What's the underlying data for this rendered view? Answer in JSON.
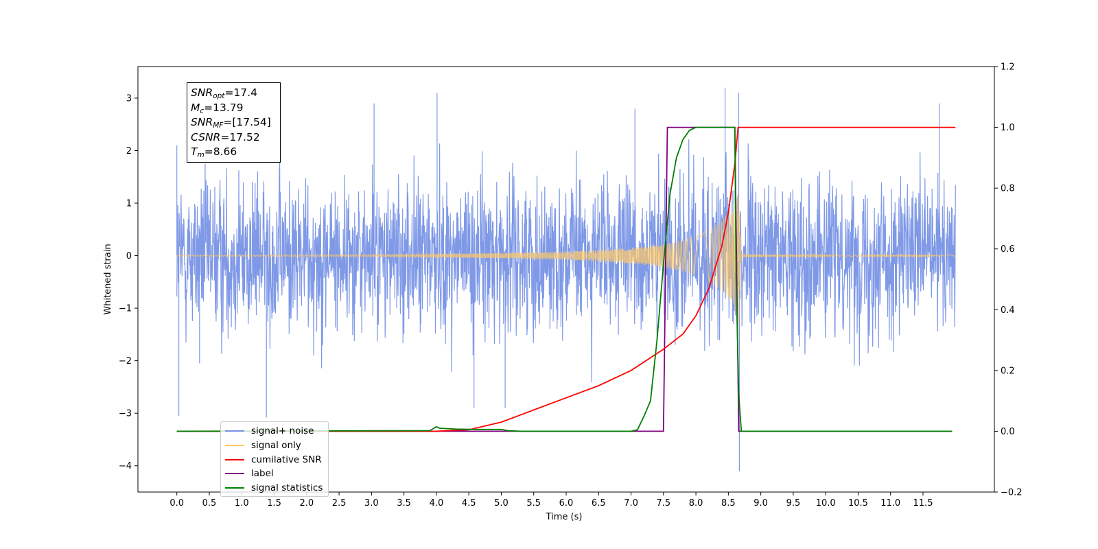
{
  "chart_data": {
    "type": "line",
    "xlabel": "Time (s)",
    "ylabel": "Whitened strain",
    "y2label": "",
    "xlim": [
      -0.6,
      12.6
    ],
    "ylim": [
      -4.5,
      3.6
    ],
    "y2lim": [
      -0.2,
      1.2
    ],
    "xticks": [
      "0.0",
      "0.5",
      "1.0",
      "1.5",
      "2.0",
      "2.5",
      "3.0",
      "3.5",
      "4.0",
      "4.5",
      "5.0",
      "5.5",
      "6.0",
      "6.5",
      "7.0",
      "7.5",
      "8.0",
      "8.5",
      "9.0",
      "9.5",
      "10.0",
      "10.5",
      "11.0",
      "11.5"
    ],
    "yticks": [
      "3",
      "2",
      "1",
      "0",
      "−1",
      "−2",
      "−3",
      "−4"
    ],
    "y2ticks": [
      "1.2",
      "1.0",
      "0.8",
      "0.6",
      "0.4",
      "0.2",
      "0.0",
      "−0.2"
    ],
    "legend_position": "lower-left",
    "legend": [
      {
        "label": "signal+ noise",
        "color": "#7893e6"
      },
      {
        "label": "signal only",
        "color": "#ffc966"
      },
      {
        "label": "cumilative SNR",
        "color": "#ff0000"
      },
      {
        "label": "label",
        "color": "#800080"
      },
      {
        "label": "signal statistics",
        "color": "#008000"
      }
    ],
    "annotations": [
      {
        "symbol": "SNR",
        "sub": "opt",
        "value": "=17.4"
      },
      {
        "symbol": "M",
        "sub": "c",
        "value": "=13.79"
      },
      {
        "symbol": "SNR",
        "sub": "MF",
        "value": "=[17.54]"
      },
      {
        "symbol": "CSNR",
        "sub": "",
        "value": "=17.52"
      },
      {
        "symbol": "T",
        "sub": "m",
        "value": "=8.66"
      }
    ],
    "series": [
      {
        "name": "signal+ noise",
        "axis": "left",
        "description_range": [
          -3.0,
          3.2
        ],
        "x_range": [
          0.0,
          12.0
        ],
        "peaks": {
          "x": [
            0.0,
            0.03,
            0.35,
            1.38,
            3.04,
            4.01,
            4.58,
            5.06,
            7.06,
            8.45,
            8.66,
            8.67,
            11.75
          ],
          "y": [
            2.1,
            -3.05,
            -2.05,
            -3.08,
            2.9,
            3.1,
            -2.9,
            -2.9,
            2.8,
            3.2,
            3.1,
            -4.1,
            2.9
          ]
        }
      },
      {
        "name": "signal only",
        "axis": "left",
        "x": [
          0.0,
          3.0,
          4.0,
          5.0,
          6.0,
          6.5,
          7.0,
          7.5,
          7.8,
          8.0,
          8.2,
          8.4,
          8.55,
          8.62,
          8.66,
          8.7,
          12.0
        ],
        "envelope": [
          0.01,
          0.02,
          0.03,
          0.05,
          0.08,
          0.11,
          0.15,
          0.22,
          0.3,
          0.38,
          0.5,
          0.68,
          0.9,
          1.1,
          1.3,
          0.02,
          0.01
        ]
      },
      {
        "name": "cumilative SNR",
        "axis": "right",
        "x": [
          0.0,
          3.0,
          4.0,
          4.5,
          5.0,
          5.5,
          6.0,
          6.5,
          7.0,
          7.5,
          7.8,
          8.0,
          8.2,
          8.4,
          8.5,
          8.6,
          8.65,
          12.0
        ],
        "values": [
          0.0,
          0.0,
          0.0,
          0.005,
          0.03,
          0.07,
          0.11,
          0.15,
          0.2,
          0.27,
          0.32,
          0.38,
          0.47,
          0.61,
          0.72,
          0.88,
          1.0,
          1.0
        ]
      },
      {
        "name": "label",
        "axis": "right",
        "x": [
          0.0,
          7.5,
          7.56,
          8.6,
          8.66,
          11.95
        ],
        "values": [
          0.0,
          0.0,
          1.0,
          1.0,
          0.0,
          0.0
        ]
      },
      {
        "name": "signal statistics",
        "axis": "right",
        "x": [
          0.0,
          3.9,
          4.0,
          4.05,
          4.3,
          4.6,
          5.0,
          5.1,
          5.3,
          7.0,
          7.1,
          7.2,
          7.3,
          7.4,
          7.5,
          7.6,
          7.7,
          7.8,
          7.9,
          8.0,
          8.6,
          8.62,
          8.66,
          8.7,
          11.95
        ],
        "values": [
          0.0,
          0.002,
          0.015,
          0.01,
          0.007,
          0.006,
          0.006,
          0.002,
          0.0,
          0.0,
          0.005,
          0.05,
          0.1,
          0.3,
          0.55,
          0.78,
          0.9,
          0.96,
          0.99,
          1.0,
          1.0,
          0.5,
          0.12,
          0.0,
          0.0
        ]
      }
    ]
  }
}
